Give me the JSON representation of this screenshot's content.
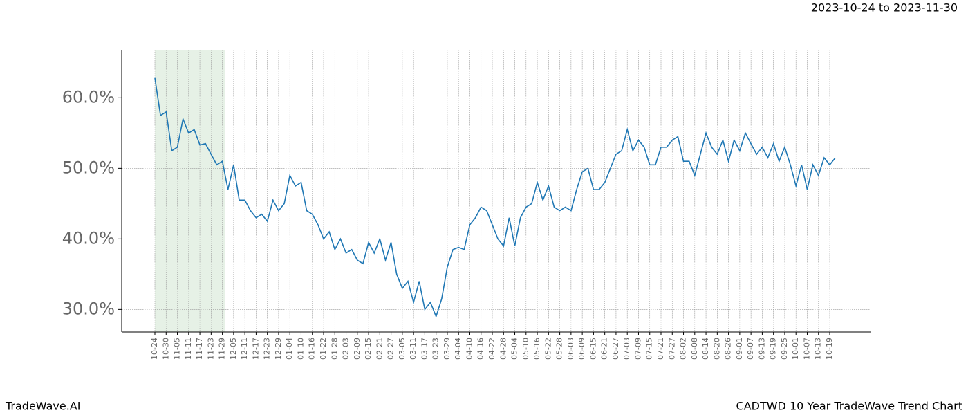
{
  "chart_data": {
    "type": "line",
    "title": "2023-10-24 to 2023-11-30",
    "footer_left": "TradeWave.AI",
    "footer_right": "CADTWD 10 Year TradeWave Trend Chart",
    "categories": [
      "10-24",
      null,
      "10-30",
      null,
      "11-05",
      null,
      "11-11",
      null,
      "11-17",
      null,
      "11-23",
      null,
      "11-29",
      null,
      "12-05",
      null,
      "12-11",
      null,
      "12-17",
      null,
      "12-23",
      null,
      "12-29",
      null,
      "01-04",
      null,
      "01-10",
      null,
      "01-16",
      null,
      "01-22",
      null,
      "01-28",
      null,
      "02-03",
      null,
      "02-09",
      null,
      "02-15",
      null,
      "02-21",
      null,
      "02-27",
      null,
      "03-05",
      null,
      "03-11",
      null,
      "03-17",
      null,
      "03-23",
      null,
      "03-29",
      null,
      "04-04",
      null,
      "04-10",
      null,
      "04-16",
      null,
      "04-22",
      null,
      "04-28",
      null,
      "05-04",
      null,
      "05-10",
      null,
      "05-16",
      null,
      "05-22",
      null,
      "05-28",
      null,
      "06-03",
      null,
      "06-09",
      null,
      "06-15",
      null,
      "06-21",
      null,
      "06-27",
      null,
      "07-03",
      null,
      "07-09",
      null,
      "07-15",
      null,
      "07-21",
      null,
      "07-27",
      null,
      "08-02",
      null,
      "08-08",
      null,
      "08-14",
      null,
      "08-20",
      null,
      "08-26",
      null,
      "09-01",
      null,
      "09-07",
      null,
      "09-13",
      null,
      "09-19",
      null,
      "09-25",
      null,
      "10-01",
      null,
      "10-07",
      null,
      "10-13",
      null,
      "10-19",
      null
    ],
    "series": [
      {
        "color": "#1f77b4",
        "values": [
          62.8,
          57.5,
          58.0,
          52.5,
          53.0,
          57.0,
          55.0,
          55.5,
          53.3,
          53.5,
          52.0,
          50.5,
          51.0,
          47.0,
          50.5,
          45.5,
          45.5,
          44.0,
          43.0,
          43.5,
          42.5,
          45.5,
          44.0,
          45.0,
          49.0,
          47.5,
          48.0,
          44.0,
          43.5,
          42.0,
          40.0,
          41.0,
          38.5,
          40.0,
          38.0,
          38.5,
          37.0,
          36.5,
          39.5,
          38.0,
          40.0,
          37.0,
          39.5,
          35.0,
          33.0,
          34.0,
          31.0,
          34.0,
          30.0,
          31.0,
          29.0,
          31.5,
          36.0,
          38.5,
          38.8,
          38.5,
          42.0,
          43.0,
          44.5,
          44.0,
          42.0,
          40.0,
          39.0,
          43.0,
          39.0,
          43.0,
          44.5,
          45.0,
          48.0,
          45.5,
          47.5,
          44.5,
          44.0,
          44.5,
          44.0,
          47.0,
          49.5,
          50.0,
          47.0,
          47.0,
          48.0,
          50.0,
          52.0,
          52.5,
          55.5,
          52.5,
          54.0,
          53.0,
          50.5,
          50.5,
          53.0,
          53.0,
          54.0,
          54.5,
          51.0,
          51.0,
          49.0,
          52.0,
          55.0,
          53.0,
          52.0,
          54.0,
          51.0,
          54.0,
          52.5,
          55.0,
          53.5,
          52.0,
          53.0,
          51.5,
          53.5,
          51.0,
          53.0,
          50.5,
          47.5,
          50.5,
          47.0,
          50.5,
          49.0,
          51.5,
          50.5,
          51.5
        ]
      }
    ],
    "ylim": [
      26.8,
      66.8
    ],
    "yticks": [
      {
        "value": 30,
        "label": "30.0%"
      },
      {
        "value": 40,
        "label": "40.0%"
      },
      {
        "value": 50,
        "label": "50.0%"
      },
      {
        "value": 60,
        "label": "60.0%"
      }
    ],
    "grid": true
  }
}
